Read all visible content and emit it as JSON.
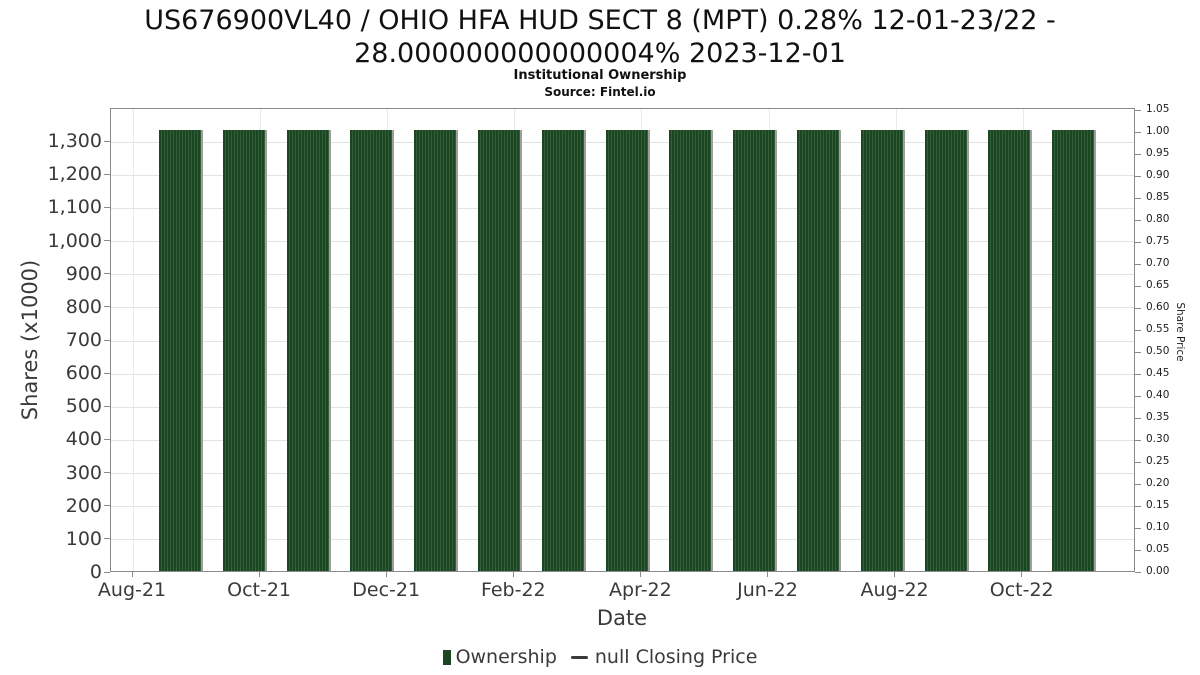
{
  "chart_data": {
    "type": "bar",
    "title": "US676900VL40 / OHIO HFA HUD SECT 8 (MPT) 0.28% 12-01-23/22 - 28.000000000000004% 2023-12-01",
    "title_lines": [
      "US676900VL40 / OHIO HFA HUD SECT 8 (MPT) 0.28% 12-01-23/22 -",
      "28.000000000000004% 2023-12-01"
    ],
    "subtitle": "Institutional Ownership",
    "source": "Source: Fintel.io",
    "xlabel": "Date",
    "ylabel_left": "Shares (x1000)",
    "ylabel_right": "Share Price",
    "categories": [
      "Sep-21",
      "Oct-21",
      "Nov-21",
      "Dec-21",
      "Jan-22",
      "Feb-22",
      "Mar-22",
      "Apr-22",
      "May-22",
      "Jun-22",
      "Jul-22",
      "Aug-22",
      "Sep-22",
      "Oct-22",
      "Nov-22"
    ],
    "series": [
      {
        "name": "Ownership",
        "unit": "shares x1000",
        "values": [
          1330,
          1330,
          1330,
          1330,
          1330,
          1330,
          1330,
          1330,
          1330,
          1330,
          1330,
          1330,
          1330,
          1330,
          1330
        ]
      }
    ],
    "line_series": {
      "name": "null Closing Price",
      "values": []
    },
    "x_tick_labels": [
      "Aug-21",
      "Oct-21",
      "Dec-21",
      "Feb-22",
      "Apr-22",
      "Jun-22",
      "Aug-22",
      "Oct-22"
    ],
    "y_left_axis": {
      "min": 0,
      "max": 1400,
      "tick_step": 100,
      "last_labeled_tick": 1300
    },
    "y_right_axis": {
      "min": 0.0,
      "max": 1.05,
      "tick_step": 0.05
    },
    "grid": true,
    "legend_position": "bottom",
    "legend": [
      {
        "label": "Ownership",
        "marker": "square",
        "color": "#1c4522"
      },
      {
        "label": "null Closing Price",
        "marker": "dash",
        "color": "#3a3a3a"
      }
    ],
    "colors": {
      "bar": "#1c4522",
      "bar_stripe": "#33603a",
      "bar_shadow": "#9e9e9e",
      "grid_line": "#e3e3e3",
      "axis_frame": "#8a8a8a",
      "text": "#3a3a3a"
    }
  }
}
